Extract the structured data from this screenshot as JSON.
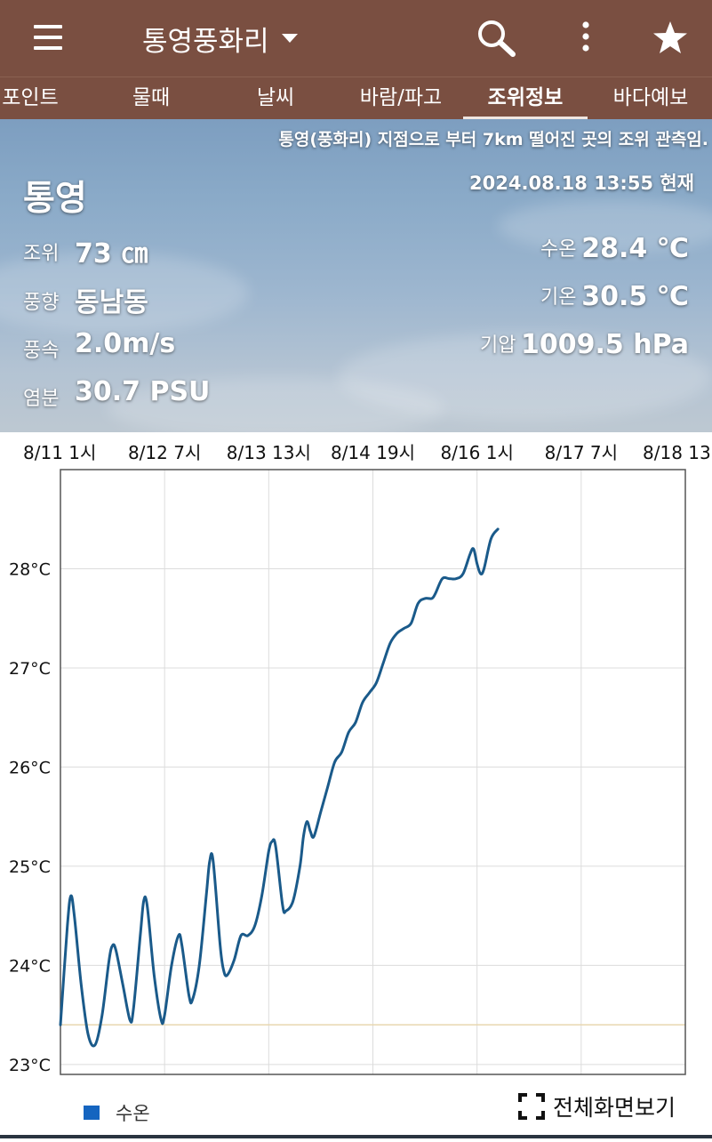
{
  "header": {
    "title": "통영풍화리",
    "icons": {
      "menu": "hamburger-menu-icon",
      "dropdown": "caret-down-icon",
      "search": "search-icon",
      "more": "more-vert-icon",
      "favorite": "star-icon"
    }
  },
  "tabs": [
    {
      "label": "포인트",
      "active": false
    },
    {
      "label": "물때",
      "active": false
    },
    {
      "label": "날씨",
      "active": false
    },
    {
      "label": "바람/파고",
      "active": false
    },
    {
      "label": "조위정보",
      "active": true
    },
    {
      "label": "바다예보",
      "active": false
    }
  ],
  "info": {
    "notice": "통영(풍화리) 지점으로 부터 7km 떨어진 곳의 조위 관측임.",
    "station": "통영",
    "datetime": "2024.08.18 13:55 현재",
    "left": [
      {
        "label": "조위",
        "value": "73 ㎝"
      },
      {
        "label": "풍향",
        "value": "동남동"
      },
      {
        "label": "풍속",
        "value": "2.0m/s"
      },
      {
        "label": "염분",
        "value": "30.7 PSU"
      }
    ],
    "right": [
      {
        "label": "수온",
        "value": "28.4 ℃"
      },
      {
        "label": "기온",
        "value": "30.5 ℃"
      },
      {
        "label": "기압",
        "value": "1009.5 hPa"
      }
    ]
  },
  "chart_data": {
    "type": "line",
    "x_tick_labels": [
      "8/11 1시",
      "8/12 7시",
      "8/13 13시",
      "8/14 19시",
      "8/16 1시",
      "8/17 7시",
      "8/18 13"
    ],
    "y_tick_labels": [
      "23°C",
      "24°C",
      "25°C",
      "26°C",
      "27°C",
      "28°C"
    ],
    "ylim": [
      22.9,
      29.0
    ],
    "x_range_hours": [
      0,
      180
    ],
    "reference_line": 23.4,
    "series": [
      {
        "name": "수온",
        "color": "#1a5a8a",
        "points": [
          [
            0,
            23.4
          ],
          [
            2,
            24.4
          ],
          [
            3,
            24.7
          ],
          [
            4,
            24.5
          ],
          [
            6,
            23.8
          ],
          [
            8,
            23.3
          ],
          [
            10,
            23.2
          ],
          [
            12,
            23.5
          ],
          [
            14,
            24.05
          ],
          [
            15,
            24.2
          ],
          [
            16,
            24.15
          ],
          [
            18,
            23.8
          ],
          [
            20,
            23.45
          ],
          [
            21,
            23.55
          ],
          [
            23,
            24.3
          ],
          [
            24,
            24.65
          ],
          [
            25,
            24.6
          ],
          [
            27,
            23.9
          ],
          [
            29,
            23.45
          ],
          [
            30,
            23.5
          ],
          [
            32,
            24.0
          ],
          [
            34,
            24.3
          ],
          [
            35,
            24.2
          ],
          [
            37,
            23.7
          ],
          [
            38,
            23.65
          ],
          [
            40,
            24.0
          ],
          [
            42,
            24.7
          ],
          [
            43,
            25.05
          ],
          [
            44,
            25.05
          ],
          [
            46,
            24.2
          ],
          [
            47,
            23.95
          ],
          [
            48,
            23.9
          ],
          [
            50,
            24.05
          ],
          [
            52,
            24.3
          ],
          [
            54,
            24.3
          ],
          [
            56,
            24.4
          ],
          [
            58,
            24.7
          ],
          [
            60,
            25.15
          ],
          [
            61,
            25.25
          ],
          [
            62,
            25.2
          ],
          [
            64,
            24.6
          ],
          [
            65,
            24.55
          ],
          [
            67,
            24.65
          ],
          [
            69,
            25.0
          ],
          [
            70,
            25.3
          ],
          [
            71,
            25.45
          ],
          [
            72,
            25.35
          ],
          [
            73,
            25.3
          ],
          [
            75,
            25.55
          ],
          [
            77,
            25.8
          ],
          [
            79,
            26.05
          ],
          [
            81,
            26.15
          ],
          [
            83,
            26.35
          ],
          [
            85,
            26.45
          ],
          [
            87,
            26.65
          ],
          [
            89,
            26.75
          ],
          [
            91,
            26.85
          ],
          [
            93,
            27.05
          ],
          [
            95,
            27.25
          ],
          [
            97,
            27.35
          ],
          [
            99,
            27.4
          ],
          [
            101,
            27.45
          ],
          [
            103,
            27.65
          ],
          [
            105,
            27.7
          ],
          [
            107,
            27.7
          ],
          [
            108,
            27.75
          ],
          [
            110,
            27.9
          ],
          [
            112,
            27.9
          ],
          [
            114,
            27.9
          ],
          [
            116,
            27.95
          ],
          [
            118,
            28.15
          ],
          [
            119,
            28.2
          ],
          [
            120,
            28.05
          ],
          [
            121,
            27.95
          ],
          [
            122,
            28.0
          ],
          [
            124,
            28.3
          ],
          [
            126,
            28.4
          ]
        ]
      }
    ],
    "legend": "bottom-left"
  },
  "legend": {
    "label": "수온",
    "color": "#1565c0"
  },
  "fullscreen": {
    "label": "전체화면보기",
    "icon": "fullscreen-icon"
  }
}
